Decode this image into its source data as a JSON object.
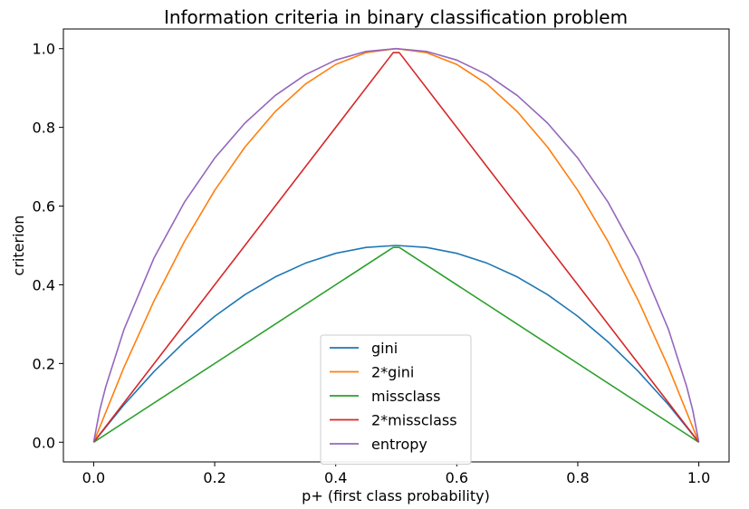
{
  "chart_data": {
    "type": "line",
    "title": "Information criteria in binary classification problem",
    "xlabel": "p+ (first class probability)",
    "ylabel": "criterion",
    "xlim": [
      -0.05,
      1.05
    ],
    "ylim": [
      -0.05,
      1.05
    ],
    "xticks": [
      0.0,
      0.2,
      0.4,
      0.6,
      0.8,
      1.0
    ],
    "yticks": [
      0.0,
      0.2,
      0.4,
      0.6,
      0.8,
      1.0
    ],
    "xtick_labels": [
      "0.0",
      "0.2",
      "0.4",
      "0.6",
      "0.8",
      "1.0"
    ],
    "ytick_labels": [
      "0.0",
      "0.2",
      "0.4",
      "0.6",
      "0.8",
      "1.0"
    ],
    "grid": false,
    "legend_position": "lower-center",
    "series": [
      {
        "name": "gini",
        "color": "#1f77b4",
        "x": [
          0.0,
          0.05,
          0.1,
          0.15,
          0.2,
          0.25,
          0.3,
          0.35,
          0.4,
          0.45,
          0.5,
          0.55,
          0.6,
          0.65,
          0.7,
          0.75,
          0.8,
          0.85,
          0.9,
          0.95,
          1.0
        ],
        "y": [
          0.0,
          0.095,
          0.18,
          0.255,
          0.32,
          0.375,
          0.42,
          0.455,
          0.48,
          0.495,
          0.5,
          0.495,
          0.48,
          0.455,
          0.42,
          0.375,
          0.32,
          0.255,
          0.18,
          0.095,
          0.0
        ]
      },
      {
        "name": "2*gini",
        "color": "#ff7f0e",
        "x": [
          0.0,
          0.05,
          0.1,
          0.15,
          0.2,
          0.25,
          0.3,
          0.35,
          0.4,
          0.45,
          0.5,
          0.55,
          0.6,
          0.65,
          0.7,
          0.75,
          0.8,
          0.85,
          0.9,
          0.95,
          1.0
        ],
        "y": [
          0.0,
          0.19,
          0.36,
          0.51,
          0.64,
          0.75,
          0.84,
          0.91,
          0.96,
          0.99,
          1.0,
          0.99,
          0.96,
          0.91,
          0.84,
          0.75,
          0.64,
          0.51,
          0.36,
          0.19,
          0.0
        ]
      },
      {
        "name": "missclass",
        "color": "#2ca02c",
        "x": [
          0.0,
          0.495,
          0.505,
          1.0
        ],
        "y": [
          0.0,
          0.495,
          0.495,
          0.0
        ]
      },
      {
        "name": "2*missclass",
        "color": "#d62728",
        "x": [
          0.0,
          0.495,
          0.505,
          1.0
        ],
        "y": [
          0.0,
          0.99,
          0.99,
          0.0
        ]
      },
      {
        "name": "entropy",
        "color": "#9467bd",
        "x": [
          0.0,
          0.01,
          0.02,
          0.05,
          0.1,
          0.15,
          0.2,
          0.25,
          0.3,
          0.35,
          0.4,
          0.45,
          0.5,
          0.55,
          0.6,
          0.65,
          0.7,
          0.75,
          0.8,
          0.85,
          0.9,
          0.95,
          0.98,
          0.99,
          1.0
        ],
        "y": [
          0.0,
          0.081,
          0.141,
          0.286,
          0.469,
          0.61,
          0.722,
          0.811,
          0.881,
          0.934,
          0.971,
          0.993,
          1.0,
          0.993,
          0.971,
          0.934,
          0.881,
          0.811,
          0.722,
          0.61,
          0.469,
          0.286,
          0.141,
          0.081,
          0.0
        ]
      }
    ]
  }
}
